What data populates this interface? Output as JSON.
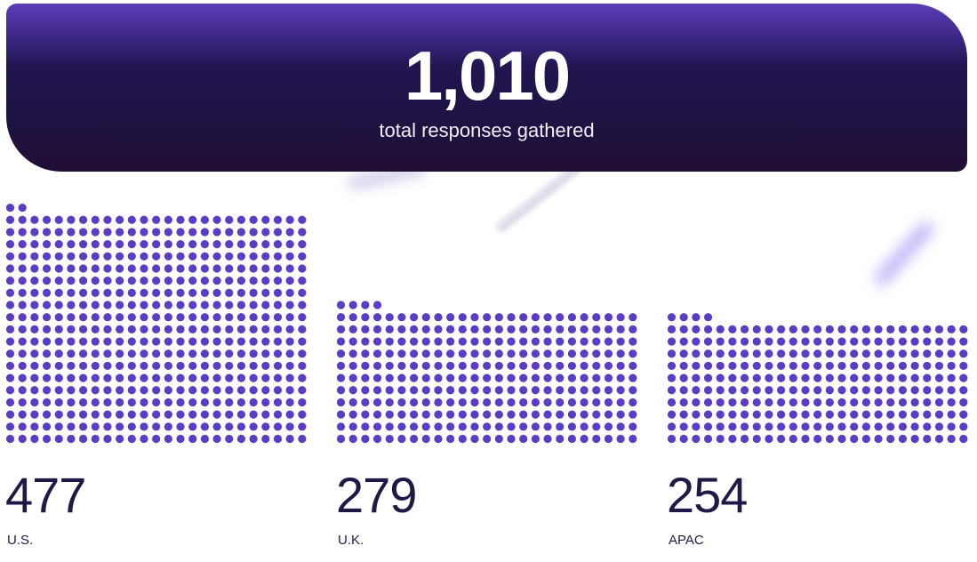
{
  "header": {
    "total": "1,010",
    "caption": "total responses gathered"
  },
  "colors": {
    "dot": "#5b3cc4",
    "header_top": "#5b3db8",
    "header_bottom": "#200d33",
    "text": "#1f1946"
  },
  "chart_data": {
    "type": "waffle",
    "dots_per_row": 25,
    "categories": [
      "U.S.",
      "U.K.",
      "APAC"
    ],
    "values": [
      477,
      279,
      254
    ],
    "value_labels": [
      "477",
      "279",
      "254"
    ]
  }
}
